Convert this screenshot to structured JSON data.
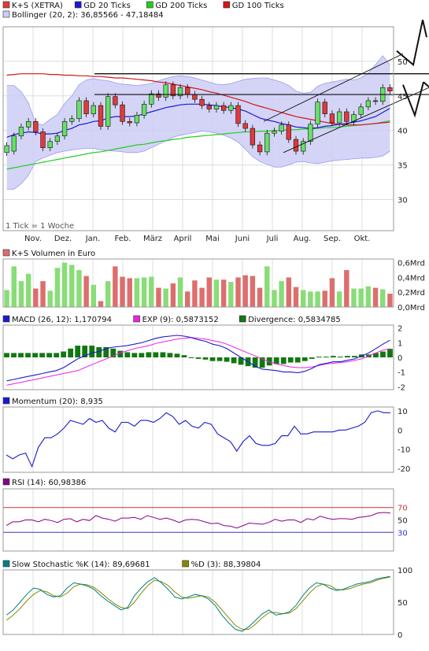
{
  "colors": {
    "candle_up": "#66e066",
    "candle_down": "#e03a3a",
    "band_fill": "#ccccf6",
    "band_line": "#9c9cf0",
    "gd20": "#1a1ad0",
    "gd200": "#22cc22",
    "gd100": "#d01818",
    "volume_up": "#88dd77",
    "volume_down": "#dd6e6e",
    "macd": "#1a1ad0",
    "exp": "#ee22dd",
    "divergence": "#117711",
    "momentum": "#1a1ad0",
    "rsi": "#880088",
    "rsi_70": "#cc3333",
    "rsi_30": "#3333cc",
    "stoch_k": "#008080",
    "stoch_d": "#888800",
    "grid": "#dddddd"
  },
  "chart_data": [
    {
      "type": "candlestick",
      "legend": [
        {
          "label": "K+S (XETRA)",
          "color": "#e03a3a"
        },
        {
          "label": "GD 20 Ticks",
          "color": "#1a1ad0"
        },
        {
          "label": "GD 200 Ticks",
          "color": "#22cc22"
        },
        {
          "label": "GD 100 Ticks",
          "color": "#d01818"
        },
        {
          "label": "Bollinger (20, 2): 36,85566 - 47,18484",
          "color": "#ccccf6"
        }
      ],
      "note": "1 Tick = 1 Woche",
      "ylim": [
        25.5,
        55
      ],
      "y_ticks": [
        {
          "v": 30,
          "t": "30"
        },
        {
          "v": 35,
          "t": "35"
        },
        {
          "v": 40,
          "t": "40"
        },
        {
          "v": 45,
          "t": "45"
        },
        {
          "v": 50,
          "t": "50"
        }
      ],
      "x_labels": [
        "Nov.",
        "Dez.",
        "Jan.",
        "Feb.",
        "März",
        "April",
        "Mai",
        "Juni",
        "Juli",
        "Aug.",
        "Sep.",
        "Okt."
      ],
      "candles": [
        [
          36.8,
          37.8
        ],
        [
          37.0,
          39.2
        ],
        [
          39.2,
          40.5
        ],
        [
          40.5,
          41.3
        ],
        [
          41.3,
          39.8
        ],
        [
          39.8,
          37.5
        ],
        [
          37.5,
          38.4
        ],
        [
          38.4,
          39.2
        ],
        [
          39.2,
          41.3
        ],
        [
          41.3,
          41.7
        ],
        [
          41.7,
          44.3
        ],
        [
          44.3,
          42.4
        ],
        [
          42.4,
          43.6
        ],
        [
          43.6,
          40.6
        ],
        [
          40.6,
          44.9
        ],
        [
          44.9,
          43.7
        ],
        [
          43.7,
          41.3
        ],
        [
          41.3,
          41.1
        ],
        [
          41.1,
          42.2
        ],
        [
          42.2,
          43.8
        ],
        [
          43.8,
          45.3
        ],
        [
          45.3,
          44.8
        ],
        [
          44.8,
          46.6
        ],
        [
          46.6,
          45.0
        ],
        [
          45.0,
          46.2
        ],
        [
          46.2,
          45.2
        ],
        [
          45.2,
          44.5
        ],
        [
          44.5,
          43.6
        ],
        [
          43.6,
          43.1
        ],
        [
          43.1,
          43.6
        ],
        [
          43.6,
          42.9
        ],
        [
          42.9,
          43.6
        ],
        [
          43.6,
          41.0
        ],
        [
          41.0,
          40.3
        ],
        [
          40.3,
          37.9
        ],
        [
          37.9,
          36.9
        ],
        [
          36.9,
          39.6
        ],
        [
          39.6,
          39.9
        ],
        [
          39.9,
          40.8
        ],
        [
          40.8,
          38.7
        ],
        [
          38.7,
          37.0
        ],
        [
          37.0,
          38.4
        ],
        [
          38.4,
          40.9
        ],
        [
          40.9,
          44.1
        ],
        [
          44.1,
          42.4
        ],
        [
          42.4,
          41.1
        ],
        [
          41.1,
          42.7
        ],
        [
          42.7,
          41.3
        ],
        [
          41.3,
          42.3
        ],
        [
          42.3,
          43.4
        ],
        [
          43.4,
          44.3
        ],
        [
          44.3,
          44.2
        ],
        [
          44.2,
          46.2
        ],
        [
          46.2,
          45.7
        ]
      ],
      "gd20": [
        39.0,
        39.4,
        39.6,
        39.8,
        39.7,
        39.5,
        39.5,
        39.6,
        40.0,
        40.3,
        40.8,
        41.0,
        41.3,
        41.4,
        41.8,
        42.0,
        42.0,
        42.0,
        42.1,
        42.4,
        42.7,
        43.0,
        43.3,
        43.5,
        43.7,
        43.8,
        43.8,
        43.8,
        43.7,
        43.6,
        43.4,
        43.3,
        43.1,
        42.8,
        42.3,
        41.8,
        41.5,
        41.3,
        41.0,
        40.8,
        40.5,
        40.4,
        40.3,
        40.4,
        40.6,
        40.7,
        40.9,
        41.0,
        41.2,
        41.4,
        41.7,
        42.0,
        42.6,
        43.2
      ],
      "gd200": [
        34.4,
        34.6,
        34.8,
        35.0,
        35.2,
        35.4,
        35.6,
        35.8,
        36.0,
        36.2,
        36.4,
        36.6,
        36.8,
        36.9,
        37.1,
        37.3,
        37.5,
        37.7,
        37.9,
        38.0,
        38.2,
        38.4,
        38.5,
        38.7,
        38.8,
        39.0,
        39.1,
        39.2,
        39.3,
        39.4,
        39.5,
        39.6,
        39.7,
        39.8,
        39.8,
        39.9,
        39.9,
        40.0,
        40.0,
        40.1,
        40.1,
        40.2,
        40.2,
        40.3,
        40.4,
        40.4,
        40.5,
        40.6,
        40.7,
        40.8,
        40.9,
        41.0,
        41.2,
        41.4
      ],
      "gd100": [
        48.0,
        48.1,
        48.2,
        48.2,
        48.2,
        48.2,
        48.1,
        48.1,
        48.0,
        48.0,
        47.9,
        47.9,
        47.8,
        47.8,
        47.7,
        47.6,
        47.6,
        47.5,
        47.4,
        47.3,
        47.2,
        47.0,
        46.9,
        46.7,
        46.5,
        46.3,
        46.1,
        45.9,
        45.6,
        45.4,
        45.1,
        44.8,
        44.5,
        44.2,
        43.8,
        43.5,
        43.2,
        42.9,
        42.6,
        42.3,
        42.0,
        41.8,
        41.6,
        41.4,
        41.2,
        41.0,
        40.9,
        40.8,
        40.8,
        40.8,
        40.9,
        41.0,
        41.1,
        41.2
      ],
      "band_upper": [
        46.5,
        46.5,
        45.6,
        44.0,
        41.0,
        40.8,
        41.6,
        42.3,
        43.9,
        45.0,
        46.6,
        47.3,
        47.5,
        47.3,
        47.2,
        46.9,
        46.7,
        46.6,
        46.5,
        46.6,
        46.8,
        47.2,
        47.5,
        47.8,
        47.9,
        47.8,
        47.6,
        47.3,
        47.0,
        46.7,
        46.6,
        46.8,
        47.1,
        47.4,
        47.5,
        47.6,
        47.6,
        47.3,
        47.0,
        46.5,
        45.7,
        45.4,
        45.5,
        46.4,
        46.8,
        47.0,
        47.2,
        47.4,
        47.3,
        47.6,
        48.3,
        49.5,
        50.8,
        49.5
      ],
      "band_lower": [
        31.5,
        31.5,
        32.3,
        33.5,
        35.5,
        36.0,
        36.4,
        36.8,
        37.0,
        37.2,
        37.3,
        37.4,
        37.4,
        37.2,
        37.1,
        37.0,
        36.9,
        36.8,
        36.8,
        37.0,
        37.5,
        38.0,
        38.5,
        39.0,
        39.3,
        39.5,
        39.7,
        39.9,
        39.8,
        39.6,
        39.3,
        38.9,
        38.3,
        37.3,
        36.2,
        35.5,
        35.1,
        34.7,
        34.7,
        35.0,
        35.4,
        35.5,
        35.3,
        35.2,
        35.4,
        35.6,
        35.7,
        35.8,
        35.9,
        36.0,
        36.0,
        36.1,
        36.3,
        37.0
      ]
    },
    {
      "type": "bar",
      "legend": [
        {
          "label": "K+S Volumen in Euro",
          "color": "#dd6e6e"
        }
      ],
      "ylim": [
        0,
        0.65
      ],
      "y_ticks": [
        {
          "v": 0,
          "t": "0,0Mrd"
        },
        {
          "v": 0.2,
          "t": "0,2Mrd"
        },
        {
          "v": 0.4,
          "t": "0,4Mrd"
        },
        {
          "v": 0.6,
          "t": "0,6Mrd"
        }
      ],
      "values": [
        0.23,
        0.55,
        0.35,
        0.45,
        0.25,
        0.35,
        0.22,
        0.53,
        0.6,
        0.57,
        0.5,
        0.42,
        0.3,
        0.08,
        0.35,
        0.55,
        0.41,
        0.39,
        0.39,
        0.4,
        0.41,
        0.26,
        0.25,
        0.32,
        0.4,
        0.21,
        0.36,
        0.26,
        0.4,
        0.37,
        0.37,
        0.34,
        0.4,
        0.43,
        0.42,
        0.26,
        0.55,
        0.23,
        0.35,
        0.4,
        0.27,
        0.23,
        0.21,
        0.21,
        0.22,
        0.39,
        0.21,
        0.5,
        0.25,
        0.25,
        0.28,
        0.26,
        0.24,
        0.18
      ]
    },
    {
      "type": "line+bar",
      "legend": [
        {
          "label": "MACD (26, 12): 1,170794",
          "color": "#1a1ad0"
        },
        {
          "label": "EXP (9): 0,5873152",
          "color": "#ee22dd"
        },
        {
          "label": "Divergence: 0,5834785",
          "color": "#117711"
        }
      ],
      "ylim": [
        -2.2,
        2.2
      ],
      "y_ticks": [
        {
          "v": -2,
          "t": "-2"
        },
        {
          "v": -1,
          "t": "-1"
        },
        {
          "v": 0,
          "t": "0"
        },
        {
          "v": 1,
          "t": "1"
        },
        {
          "v": 2,
          "t": "2"
        }
      ],
      "macd": [
        -1.6,
        -1.5,
        -1.4,
        -1.3,
        -1.2,
        -1.1,
        -1.0,
        -0.9,
        -0.7,
        -0.4,
        -0.1,
        0.1,
        0.3,
        0.4,
        0.6,
        0.7,
        0.75,
        0.8,
        0.9,
        1.0,
        1.15,
        1.3,
        1.4,
        1.45,
        1.5,
        1.45,
        1.35,
        1.2,
        1.1,
        0.9,
        0.8,
        0.6,
        0.3,
        0.0,
        -0.3,
        -0.6,
        -0.8,
        -0.85,
        -0.9,
        -1.0,
        -1.0,
        -1.05,
        -0.95,
        -0.75,
        -0.5,
        -0.4,
        -0.3,
        -0.3,
        -0.2,
        -0.1,
        0.1,
        0.3,
        0.6,
        0.9,
        1.17
      ],
      "exp": [
        -1.9,
        -1.8,
        -1.7,
        -1.6,
        -1.5,
        -1.4,
        -1.3,
        -1.2,
        -1.1,
        -1.0,
        -0.9,
        -0.7,
        -0.5,
        -0.3,
        -0.1,
        0.1,
        0.3,
        0.45,
        0.6,
        0.7,
        0.8,
        0.95,
        1.05,
        1.15,
        1.25,
        1.3,
        1.35,
        1.3,
        1.25,
        1.15,
        1.05,
        0.9,
        0.7,
        0.5,
        0.3,
        0.1,
        -0.1,
        -0.3,
        -0.45,
        -0.55,
        -0.65,
        -0.7,
        -0.7,
        -0.65,
        -0.55,
        -0.45,
        -0.4,
        -0.35,
        -0.3,
        -0.2,
        -0.1,
        0.1,
        0.3,
        0.5,
        0.59
      ],
      "divergence": [
        0.3,
        0.3,
        0.3,
        0.3,
        0.3,
        0.3,
        0.3,
        0.3,
        0.4,
        0.6,
        0.8,
        0.8,
        0.8,
        0.7,
        0.7,
        0.6,
        0.45,
        0.35,
        0.3,
        0.3,
        0.35,
        0.35,
        0.35,
        0.3,
        0.25,
        0.15,
        0.0,
        -0.1,
        -0.15,
        -0.25,
        -0.25,
        -0.3,
        -0.4,
        -0.5,
        -0.6,
        -0.7,
        -0.7,
        -0.55,
        -0.45,
        -0.45,
        -0.35,
        -0.35,
        -0.25,
        -0.1,
        0.05,
        0.05,
        0.1,
        0.05,
        0.1,
        0.1,
        0.2,
        0.2,
        0.3,
        0.4,
        0.58
      ]
    },
    {
      "type": "line",
      "legend": [
        {
          "label": "Momentum (20): 8,935",
          "color": "#1a1ad0"
        }
      ],
      "ylim": [
        -22,
        12
      ],
      "y_ticks": [
        {
          "v": -20,
          "t": "-20"
        },
        {
          "v": -10,
          "t": "-10"
        },
        {
          "v": 0,
          "t": "0"
        },
        {
          "v": 10,
          "t": "10"
        }
      ],
      "values": [
        -13,
        -15,
        -13,
        -12,
        -19,
        -9,
        -4,
        -4,
        -2,
        1,
        5,
        4,
        3,
        6,
        4,
        5,
        1,
        -1,
        4,
        4,
        2,
        5,
        5,
        4,
        6,
        9,
        7,
        3,
        5,
        2,
        1,
        4,
        3,
        -2,
        -4,
        -6,
        -11,
        -6,
        -3,
        -7,
        -8,
        -8,
        -7,
        -3,
        -3,
        2,
        -2,
        -2,
        -1,
        -1,
        -1,
        -1,
        0,
        0,
        1,
        2,
        4,
        9,
        10,
        9,
        9
      ],
      "x_labels": [
        "Nov.",
        "Dez.",
        "Jan.",
        "Feb.",
        "März",
        "April",
        "Mai",
        "Juni",
        "Juli",
        "Aug.",
        "Sep.",
        "Okt."
      ]
    },
    {
      "type": "line",
      "legend": [
        {
          "label": "RSI (14): 60,98386",
          "color": "#880088"
        }
      ],
      "ylim": [
        0,
        100
      ],
      "y_ticks": [
        {
          "v": 30,
          "t": "30"
        },
        {
          "v": 50,
          "t": "50"
        },
        {
          "v": 70,
          "t": "70"
        }
      ],
      "values": [
        41,
        47,
        47,
        50,
        50,
        47,
        51,
        49,
        46,
        51,
        52,
        47,
        51,
        49,
        57,
        53,
        51,
        48,
        53,
        53,
        54,
        51,
        57,
        54,
        51,
        53,
        50,
        46,
        50,
        51,
        50,
        47,
        44,
        45,
        41,
        40,
        37,
        41,
        45,
        44,
        43,
        46,
        51,
        48,
        50,
        50,
        46,
        52,
        50,
        56,
        53,
        51,
        52,
        52,
        51,
        54,
        55,
        57,
        61,
        62,
        61
      ]
    },
    {
      "type": "line",
      "legend": [
        {
          "label": "Slow Stochastic %K (14): 89,69681",
          "color": "#008080"
        },
        {
          "label": "%D (3): 88,39804",
          "color": "#888800"
        }
      ],
      "ylim": [
        0,
        100
      ],
      "y_ticks": [
        {
          "v": 0,
          "t": "0"
        },
        {
          "v": 50,
          "t": "50"
        },
        {
          "v": 100,
          "t": "100"
        }
      ],
      "k": [
        30,
        38,
        50,
        62,
        72,
        70,
        62,
        58,
        60,
        72,
        80,
        78,
        75,
        70,
        60,
        52,
        45,
        38,
        42,
        60,
        72,
        82,
        88,
        80,
        70,
        58,
        55,
        58,
        62,
        60,
        55,
        45,
        30,
        18,
        8,
        5,
        12,
        22,
        32,
        38,
        30,
        32,
        35,
        45,
        60,
        72,
        80,
        78,
        72,
        68,
        70,
        74,
        78,
        80,
        82,
        86,
        88,
        90
      ],
      "d": [
        22,
        30,
        40,
        52,
        62,
        68,
        66,
        60,
        58,
        64,
        74,
        78,
        77,
        73,
        65,
        56,
        48,
        42,
        40,
        50,
        64,
        76,
        84,
        82,
        76,
        66,
        58,
        56,
        58,
        60,
        58,
        50,
        38,
        26,
        14,
        8,
        8,
        16,
        26,
        34,
        34,
        32,
        33,
        40,
        52,
        64,
        74,
        78,
        76,
        70,
        69,
        71,
        75,
        78,
        80,
        84,
        87,
        89
      ]
    }
  ]
}
